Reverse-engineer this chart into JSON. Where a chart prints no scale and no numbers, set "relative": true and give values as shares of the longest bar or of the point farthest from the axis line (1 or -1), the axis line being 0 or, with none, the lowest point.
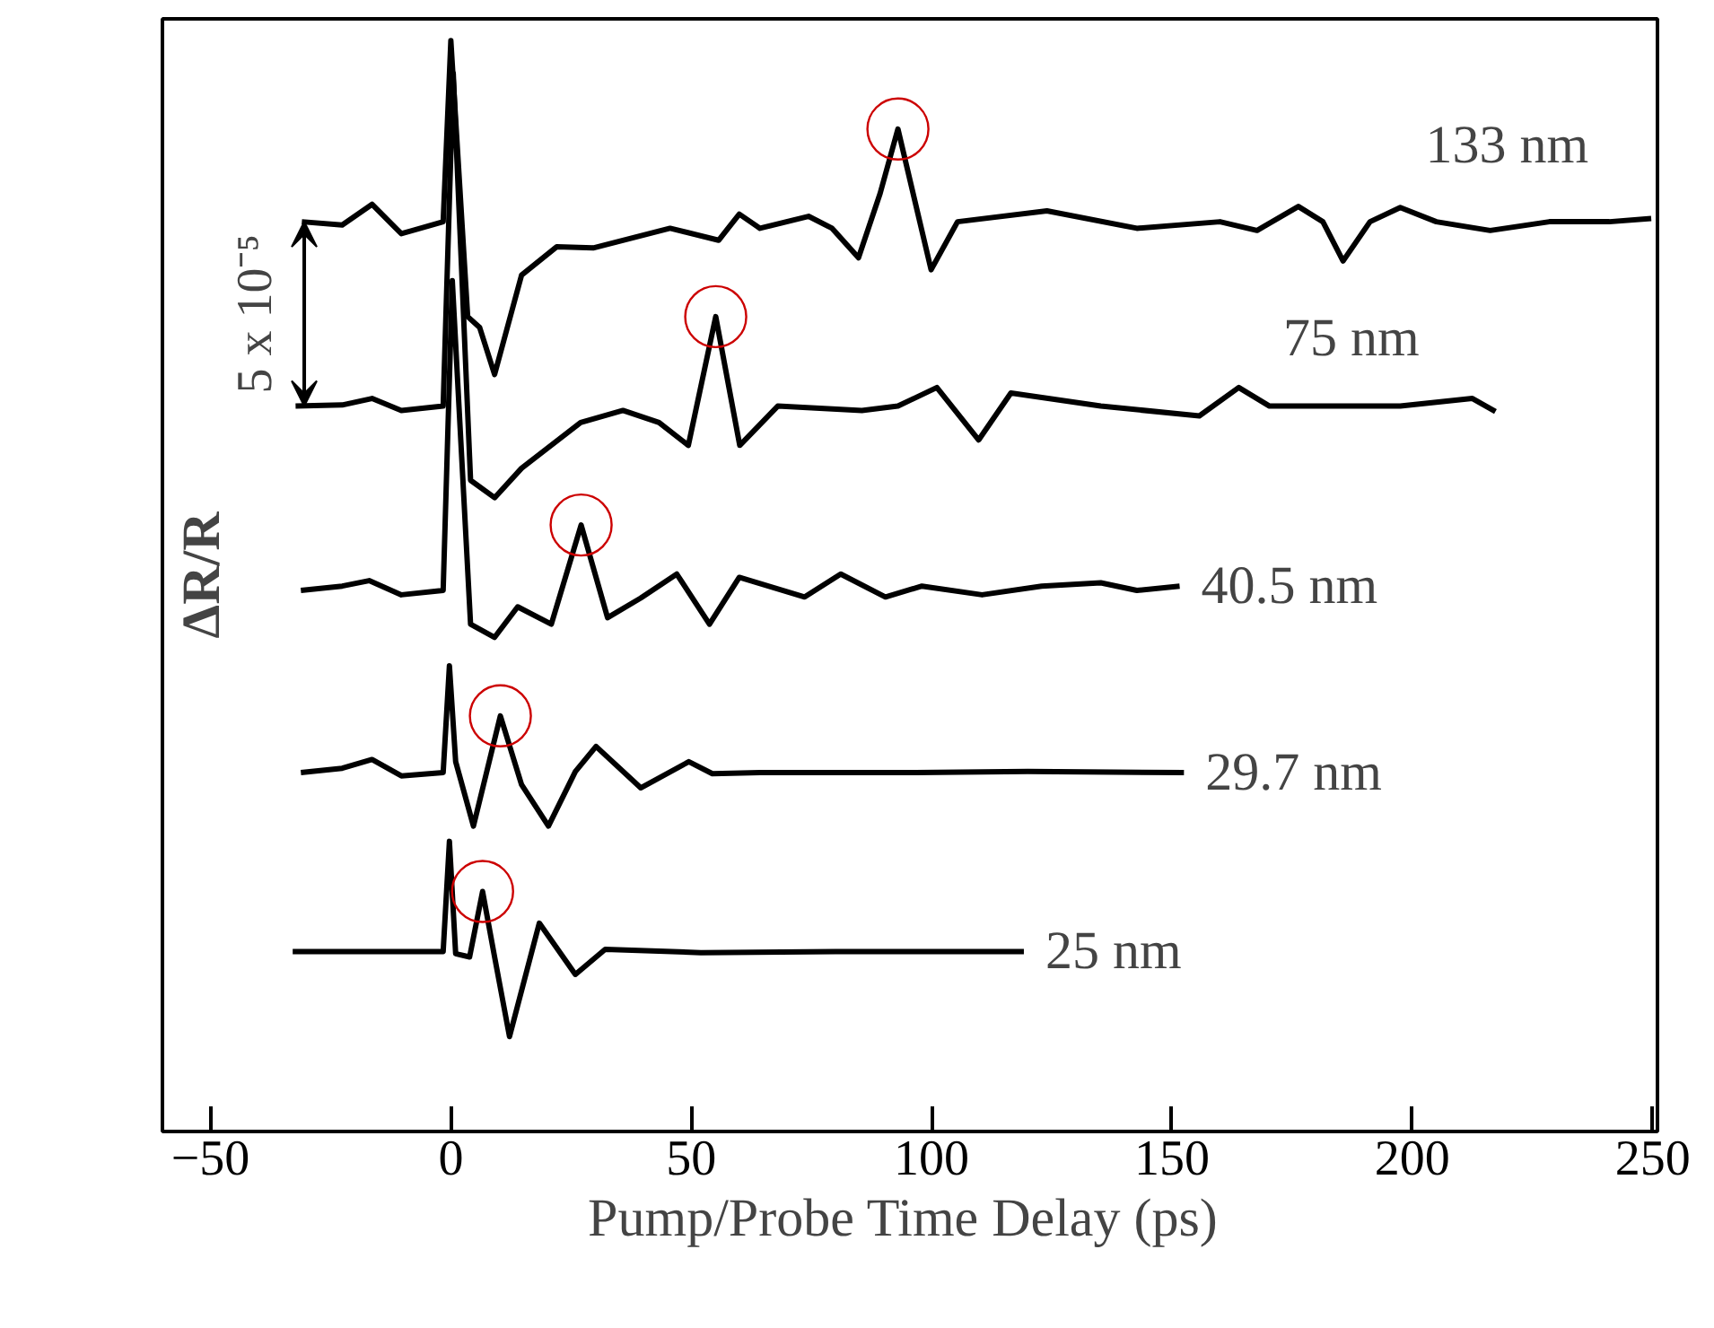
{
  "chart_data": {
    "type": "line",
    "relative": true,
    "xlabel": "Pump/Probe Time Delay  (ps)",
    "ylabel": "ΔR/R",
    "xlim": [
      -60,
      251
    ],
    "xticks": [
      -50,
      0,
      50,
      100,
      150,
      200,
      250
    ],
    "grid": false,
    "marker": "none",
    "line_style": "solid",
    "annotations": [
      "5 x 10⁻⁵"
    ],
    "series": [
      {
        "name": "133 nm",
        "color": "#000000",
        "x": [
          -31,
          -22.6,
          -16.4,
          -10.3,
          -1.6,
          0,
          3.5,
          6,
          9.1,
          14.7,
          22,
          29.6,
          45.6,
          55.7,
          60,
          64.3,
          74.4,
          79.3,
          84.8,
          89.3,
          93,
          99.9,
          105.4,
          124,
          142.7,
          160,
          167.7,
          176.3,
          181.4,
          185.6,
          191.2,
          197.5,
          205,
          216.2,
          228.5,
          241,
          249.7
        ],
        "values": [
          0.834,
          0.831,
          0.85,
          0.823,
          0.834,
          1.0,
          0.747,
          0.737,
          0.694,
          0.785,
          0.811,
          0.81,
          0.828,
          0.817,
          0.841,
          0.828,
          0.839,
          0.828,
          0.801,
          0.86,
          0.919,
          0.79,
          0.834,
          0.844,
          0.828,
          0.834,
          0.826,
          0.848,
          0.834,
          0.798,
          0.834,
          0.847,
          0.834,
          0.826,
          0.834,
          0.834,
          0.837
        ]
      },
      {
        "name": "75 nm",
        "color": "#000000",
        "x": [
          -32.3,
          -22.6,
          -16.4,
          -10.3,
          -1.6,
          0.5,
          4.1,
          9.1,
          14.7,
          27,
          35.8,
          43.3,
          49.4,
          55.1,
          60.1,
          68,
          85.5,
          93,
          101.1,
          109.8,
          116.5,
          135.2,
          155.7,
          163.9,
          170.3,
          197.5,
          212.5,
          217.3
        ],
        "values": [
          0.665,
          0.666,
          0.672,
          0.661,
          0.665,
          0.97,
          0.597,
          0.581,
          0.608,
          0.65,
          0.661,
          0.65,
          0.629,
          0.747,
          0.629,
          0.665,
          0.661,
          0.665,
          0.682,
          0.634,
          0.677,
          0.665,
          0.656,
          0.682,
          0.665,
          0.665,
          0.672,
          0.66
        ]
      },
      {
        "name": "40.5 nm",
        "color": "#000000",
        "x": [
          -31.2,
          -22.6,
          -17,
          -10.3,
          -1.6,
          0.3,
          4.1,
          9.1,
          13.9,
          20.9,
          27.1,
          32.6,
          39.5,
          47,
          53.8,
          60,
          73.6,
          81.1,
          90.4,
          98,
          110.5,
          122.9,
          135.2,
          142.7,
          151.6
        ],
        "values": [
          0.496,
          0.5,
          0.505,
          0.492,
          0.496,
          0.78,
          0.465,
          0.453,
          0.481,
          0.465,
          0.556,
          0.471,
          0.489,
          0.511,
          0.465,
          0.508,
          0.49,
          0.511,
          0.49,
          0.5,
          0.492,
          0.5,
          0.503,
          0.496,
          0.5
        ]
      },
      {
        "name": "29.7 nm",
        "color": "#000000",
        "x": [
          -31.2,
          -22.6,
          -16.4,
          -10.3,
          -1.6,
          -0.3,
          1,
          4.7,
          10.3,
          14.7,
          20.3,
          25.9,
          30.2,
          39.5,
          49.5,
          54.4,
          64.3,
          83,
          96.7,
          120,
          152.5
        ],
        "values": [
          0.329,
          0.333,
          0.341,
          0.326,
          0.329,
          0.427,
          0.339,
          0.28,
          0.381,
          0.318,
          0.28,
          0.33,
          0.353,
          0.315,
          0.339,
          0.328,
          0.329,
          0.329,
          0.329,
          0.33,
          0.329
        ]
      },
      {
        "name": "25 nm",
        "color": "#000000",
        "x": [
          -32.9,
          -1.6,
          -0.3,
          1,
          3.9,
          6.6,
          9.1,
          12.2,
          18.4,
          25.9,
          32.1,
          52,
          80,
          119.2
        ],
        "values": [
          0.165,
          0.165,
          0.266,
          0.163,
          0.16,
          0.22,
          0.16,
          0.087,
          0.191,
          0.144,
          0.167,
          0.164,
          0.165,
          0.165
        ]
      },
      {
        "type": "scatter",
        "marker": "circle",
        "color": "#cc0000",
        "x": [
          93,
          55.1,
          27.1,
          10.3,
          6.6
        ],
        "values": [
          0.919,
          0.747,
          0.556,
          0.381,
          0.22
        ]
      }
    ]
  }
}
